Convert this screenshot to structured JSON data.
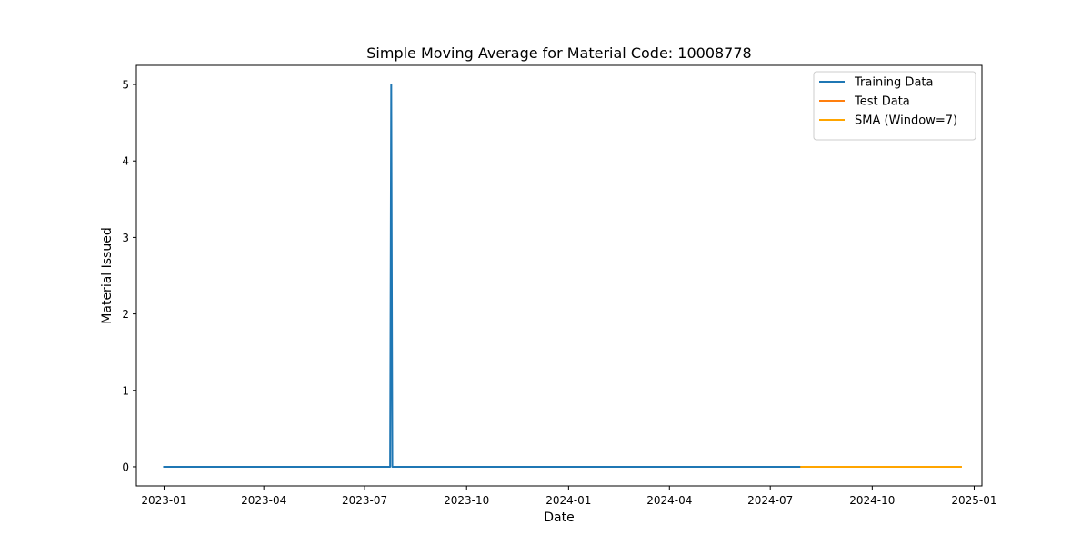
{
  "chart_data": {
    "type": "line",
    "title": "Simple Moving Average for Material Code: 10008778",
    "xlabel": "Date",
    "ylabel": "Material Issued",
    "xlim": [
      "2022-12-07",
      "2025-01-08"
    ],
    "ylim": [
      -0.25,
      5.25
    ],
    "x_ticks": [
      "2023-01",
      "2023-04",
      "2023-07",
      "2023-10",
      "2024-01",
      "2024-04",
      "2024-07",
      "2024-10",
      "2025-01"
    ],
    "y_ticks": [
      0,
      1,
      2,
      3,
      4,
      5
    ],
    "grid": false,
    "legend_position": "top-right",
    "series": [
      {
        "name": "Training Data",
        "color": "#1f77b4",
        "points": [
          {
            "x": "2023-01-01",
            "y": 0
          },
          {
            "x": "2023-07-24",
            "y": 0
          },
          {
            "x": "2023-07-25",
            "y": 5
          },
          {
            "x": "2023-07-26",
            "y": 0
          },
          {
            "x": "2024-07-29",
            "y": 0
          }
        ]
      },
      {
        "name": "Test Data",
        "color": "#ff7f0e",
        "points": [
          {
            "x": "2024-07-29",
            "y": 0
          },
          {
            "x": "2024-12-20",
            "y": 0
          }
        ]
      },
      {
        "name": "SMA (Window=7)",
        "color": "#ffa500",
        "points": [
          {
            "x": "2024-07-29",
            "y": 0
          },
          {
            "x": "2024-12-20",
            "y": 0
          }
        ]
      }
    ]
  }
}
